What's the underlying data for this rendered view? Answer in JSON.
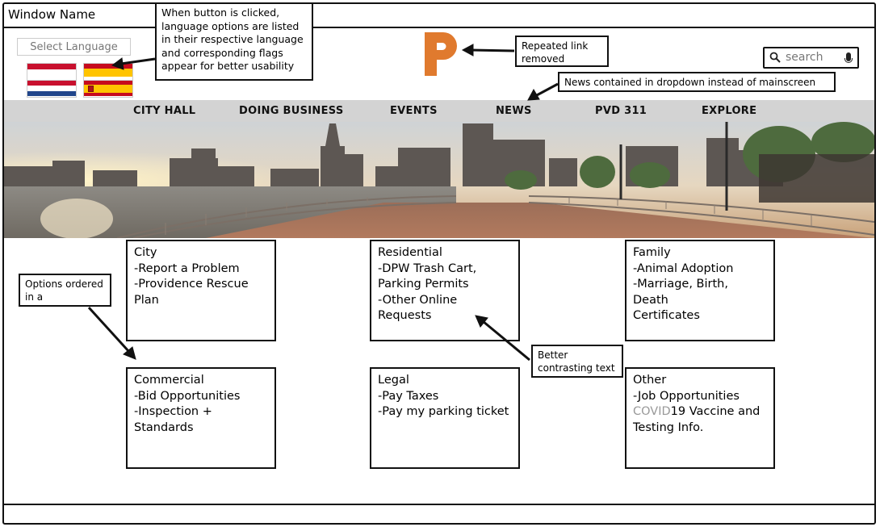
{
  "window": {
    "title": "Window Name"
  },
  "language": {
    "select_label": "Select Language",
    "flags": [
      "netherlands-flag",
      "spain-flag",
      "netherlands-flag",
      "spain-flag"
    ]
  },
  "annotations": {
    "language_note": "When button is clicked, language options are listed in their respective language and corresponding flags appear for better usability",
    "logo_note": "Repeated link removed",
    "news_note": "News contained in dropdown instead of mainscreen",
    "options_note": "Options ordered in a",
    "contrast_note": "Better contrasting text"
  },
  "logo": {
    "letter": "P",
    "color": "#E07A2E"
  },
  "search": {
    "placeholder": "search"
  },
  "nav": {
    "items": [
      "CITY HALL",
      "DOING BUSINESS",
      "EVENTS",
      "NEWS",
      "PVD 311",
      "EXPLORE"
    ]
  },
  "cards": {
    "city": {
      "title": "City",
      "lines": [
        "-Report a Problem",
        "-Providence Rescue",
        "Plan"
      ]
    },
    "residential": {
      "title": "Residential",
      "lines": [
        "-DPW Trash Cart,",
        "Parking Permits",
        "-Other Online",
        "Requests"
      ]
    },
    "family": {
      "title": "Family",
      "lines": [
        "-Animal Adoption",
        "-Marriage, Birth, Death",
        "Certificates"
      ]
    },
    "commercial": {
      "title": "Commercial",
      "lines": [
        "-Bid Opportunities",
        "-Inspection +",
        "Standards"
      ]
    },
    "legal": {
      "title": "Legal",
      "lines": [
        "-Pay Taxes",
        "-Pay my parking ticket"
      ]
    },
    "other": {
      "title": "Other",
      "lines": [
        "-Job Opportunities"
      ],
      "covid_prefix": "COVID",
      "covid_rest": "19 Vaccine and",
      "last_line": "Testing Info."
    }
  }
}
